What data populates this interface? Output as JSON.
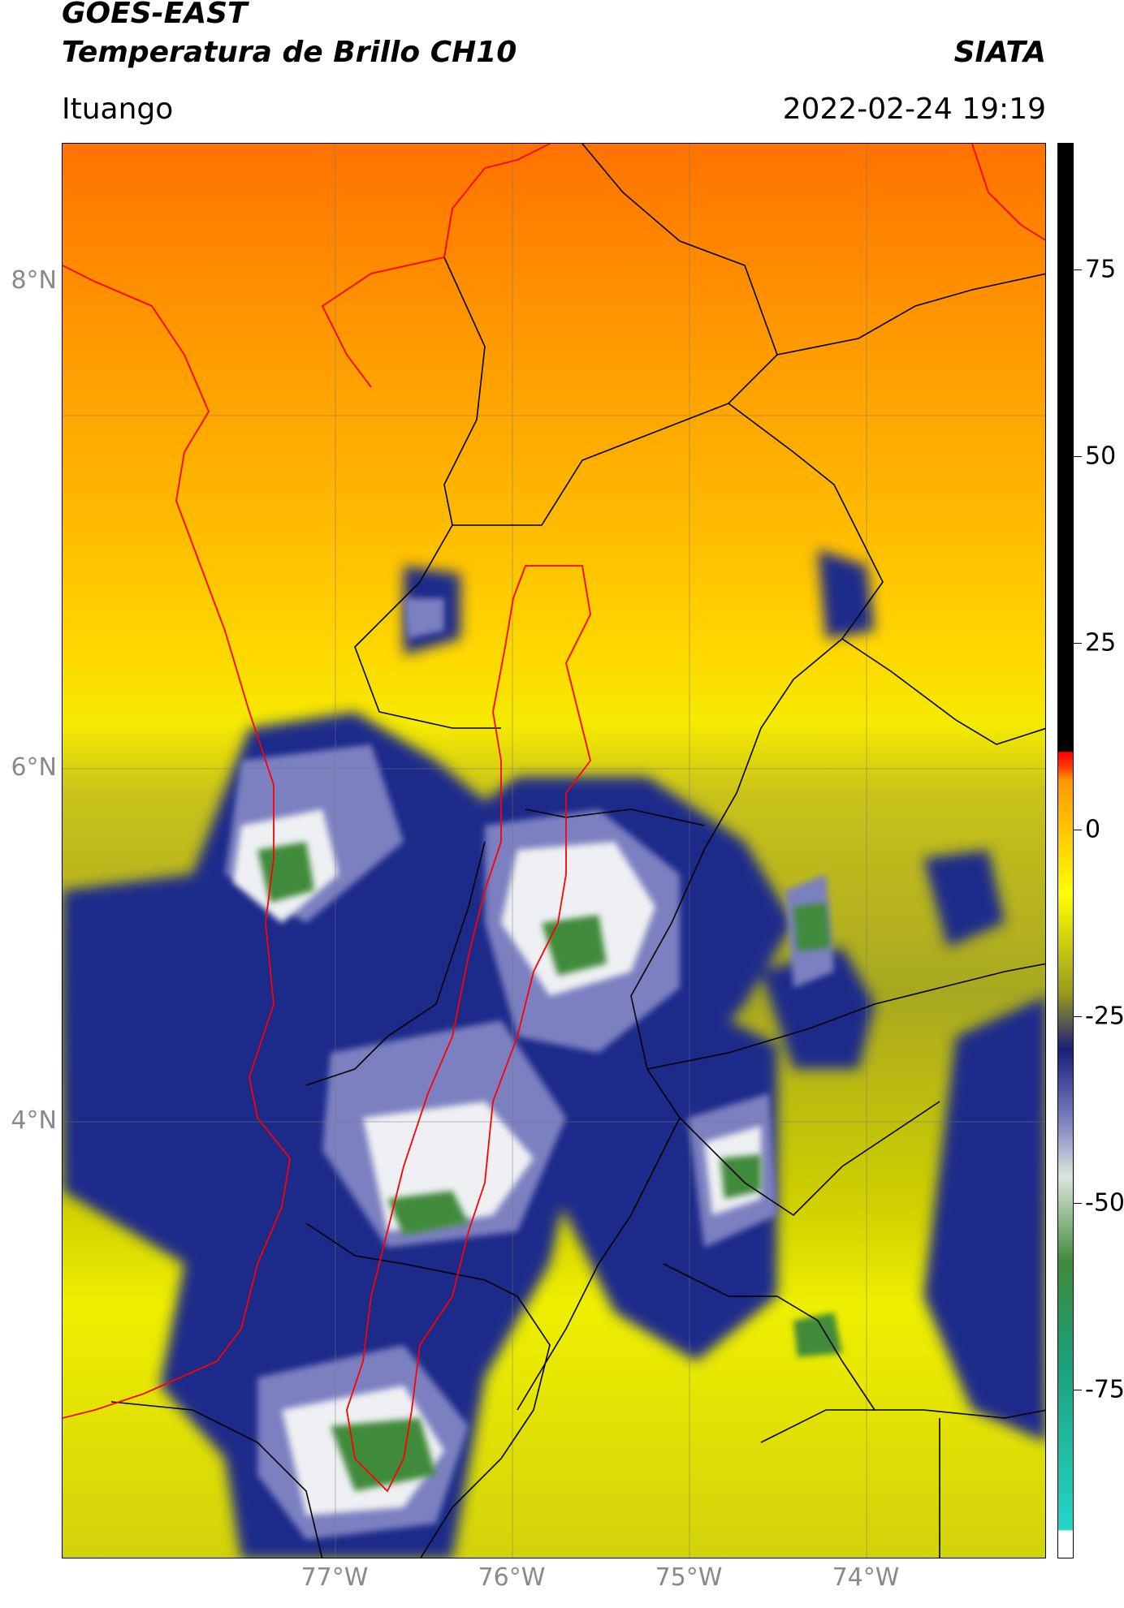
{
  "header": {
    "satellite": "GOES-EAST",
    "product": "Temperatura de Brillo CH10",
    "agency": "SIATA",
    "region": "Ituango",
    "datetime": "2022-02-24 19:19"
  },
  "map": {
    "lat_ticks": [
      "8°N",
      "6°N",
      "4°N"
    ],
    "lon_ticks": [
      "77°W",
      "76°W",
      "75°W",
      "74°W"
    ],
    "colors": {
      "north_warm": "#ff7a00",
      "mid_warm": "#ffd200",
      "cool_olive": "#b3b31d",
      "cloud_navy": "#1f2a8a",
      "cloud_white": "#eef0f3",
      "cloud_green": "#3f8a3a",
      "boundary_red": "#ff0000",
      "boundary_black": "#000000"
    },
    "legend": {
      "ticks": [
        "75",
        "50",
        "25",
        "0",
        "-25",
        "-50",
        "-75"
      ],
      "colors_bottom_to_top": [
        "#ffffff",
        "#22d6c8",
        "#1aa07a",
        "#3f8a3a",
        "#dde5dd",
        "#7c80c0",
        "#1a1f7a",
        "#9a9a1e",
        "#ffff00",
        "#ff9a00",
        "#ff0000",
        "#000000"
      ]
    }
  }
}
